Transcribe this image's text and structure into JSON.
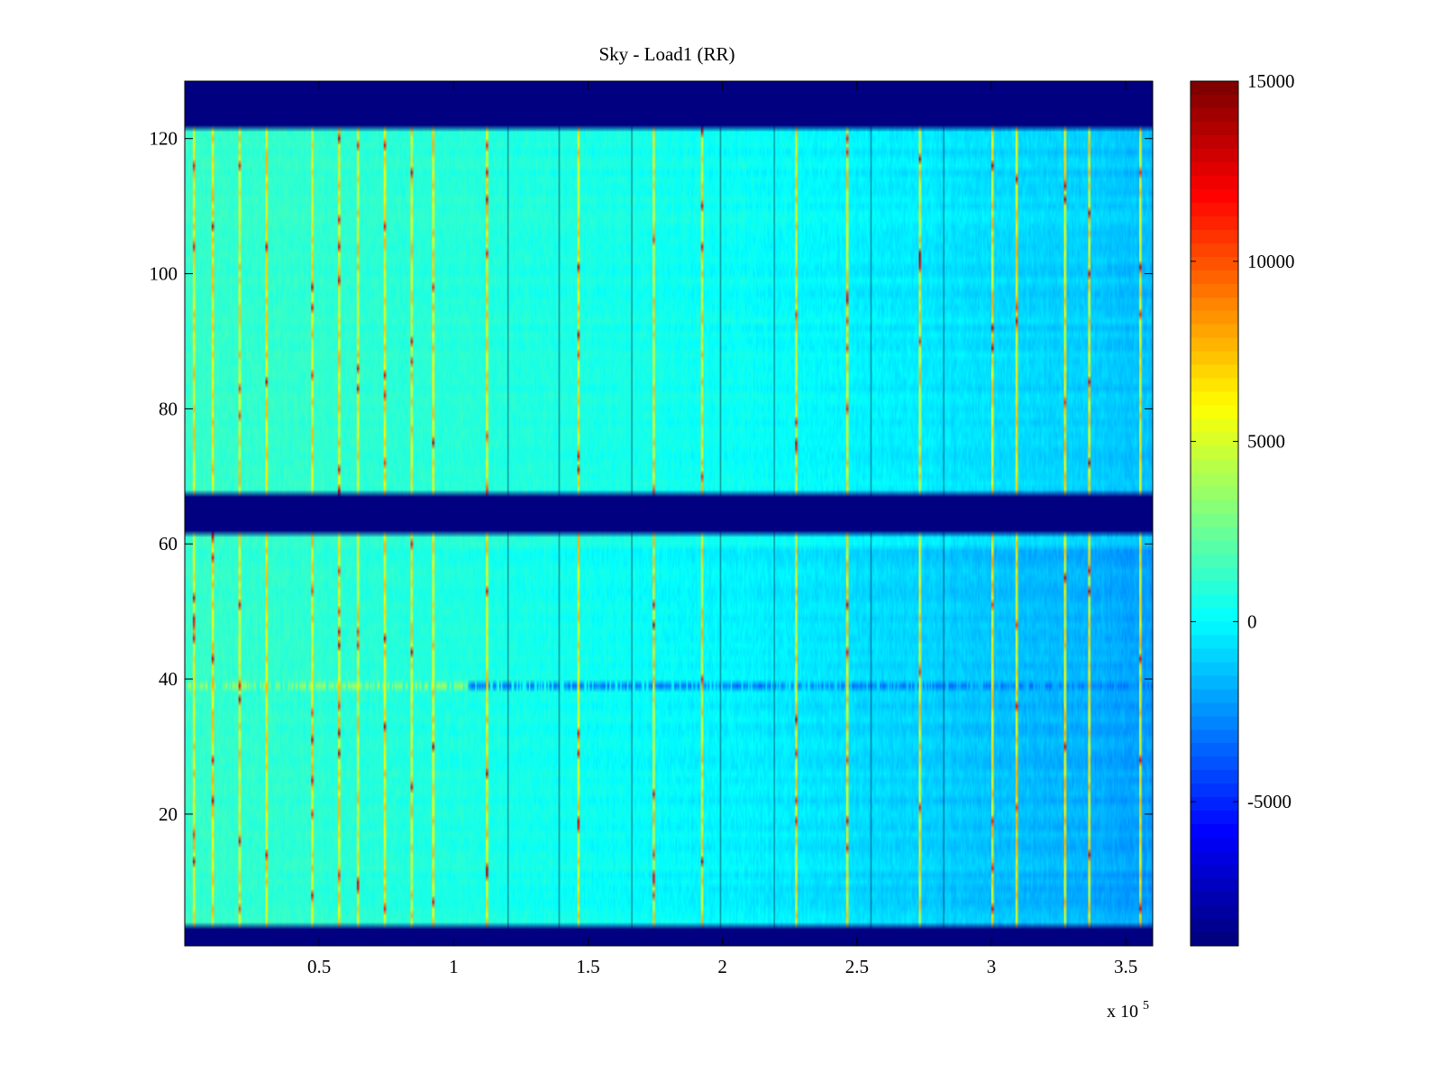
{
  "chart_data": {
    "type": "heatmap",
    "title": "Sky - Load1 (RR)",
    "xlabel": "",
    "ylabel": "",
    "x_multiplier_label": "x 10",
    "x_multiplier_exponent": "5",
    "xlim": [
      0.0,
      3.6
    ],
    "ylim": [
      0.5,
      128.5
    ],
    "x_ticks": [
      {
        "value": 0.5,
        "label": "0.5"
      },
      {
        "value": 1.0,
        "label": "1"
      },
      {
        "value": 1.5,
        "label": "1.5"
      },
      {
        "value": 2.0,
        "label": "2"
      },
      {
        "value": 2.5,
        "label": "2.5"
      },
      {
        "value": 3.0,
        "label": "3"
      },
      {
        "value": 3.5,
        "label": "3.5"
      }
    ],
    "y_ticks": [
      {
        "value": 20,
        "label": "20"
      },
      {
        "value": 40,
        "label": "40"
      },
      {
        "value": 60,
        "label": "60"
      },
      {
        "value": 80,
        "label": "80"
      },
      {
        "value": 100,
        "label": "100"
      },
      {
        "value": 120,
        "label": "120"
      }
    ],
    "colorbar": {
      "colormap": "jet",
      "range": [
        -9000,
        15000
      ],
      "ticks": [
        {
          "value": 15000,
          "label": "15000"
        },
        {
          "value": 10000,
          "label": "10000"
        },
        {
          "value": 5000,
          "label": "5000"
        },
        {
          "value": 0,
          "label": "0"
        },
        {
          "value": -5000,
          "label": "-5000"
        }
      ]
    },
    "background_value": 500,
    "masked_value": -9000,
    "masked_row_bands": [
      [
        0.5,
        3.5
      ],
      [
        61.5,
        67.5
      ],
      [
        121.5,
        128.5
      ]
    ],
    "horizontal_features": [
      {
        "y": 39,
        "x_from": 0.0,
        "x_to": 1.05,
        "value": 3500
      },
      {
        "y": 39,
        "x_from": 1.05,
        "x_to": 3.6,
        "value": -3000
      }
    ],
    "trend": {
      "left_value": 1200,
      "right_value": -2000,
      "lower_rows_extra": -800
    },
    "spike_columns_high": [
      0.03,
      0.1,
      0.2,
      0.3,
      0.47,
      0.57,
      0.64,
      0.74,
      0.84,
      0.92,
      1.12,
      1.46,
      1.74,
      1.92,
      2.27,
      2.46,
      2.73,
      3.0,
      3.09,
      3.27,
      3.36,
      3.55
    ],
    "dark_columns": [
      1.2,
      1.39,
      1.66,
      1.99,
      2.19,
      2.55,
      2.82
    ],
    "description": "Channel vs sample heatmap of sky minus load difference"
  },
  "colors": {
    "masked": "#00008f",
    "axis": "#000000",
    "background": "#ffffff"
  }
}
